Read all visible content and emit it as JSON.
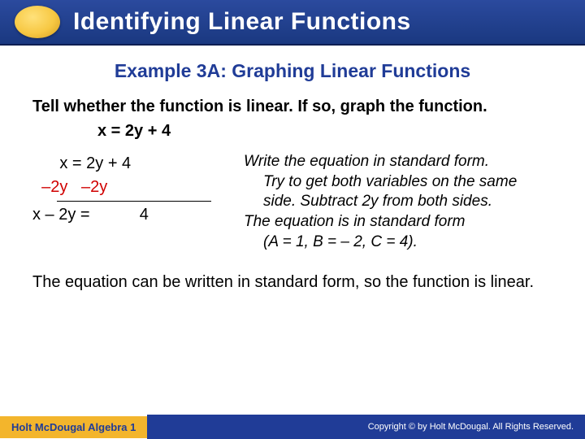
{
  "header": {
    "title": "Identifying Linear Functions"
  },
  "subtitle": "Example 3A: Graphing Linear Functions",
  "instruction": "Tell whether the function is linear. If so, graph the function.",
  "given_eq": "x = 2y + 4",
  "work": {
    "line1": "      x = 2y + 4",
    "line2a": "  –2y",
    "line2b": "   –2y",
    "line3": "x – 2y =           4"
  },
  "explain": {
    "p1": "Write the equation in standard form.",
    "p2": "Try to get both variables on the same side. Subtract 2y from both sides.",
    "p3": "The equation is in standard form",
    "p4": "(A = 1, B = – 2, C = 4)."
  },
  "conclusion": "The equation can be written in standard form, so the function is linear.",
  "footer": {
    "left": "Holt McDougal Algebra 1",
    "right": "Copyright © by Holt McDougal. All Rights Reserved."
  },
  "colors": {
    "header_bg": "#1f3d93",
    "accent": "#f3b52c",
    "subtitle": "#203c97",
    "red": "#d00000"
  }
}
